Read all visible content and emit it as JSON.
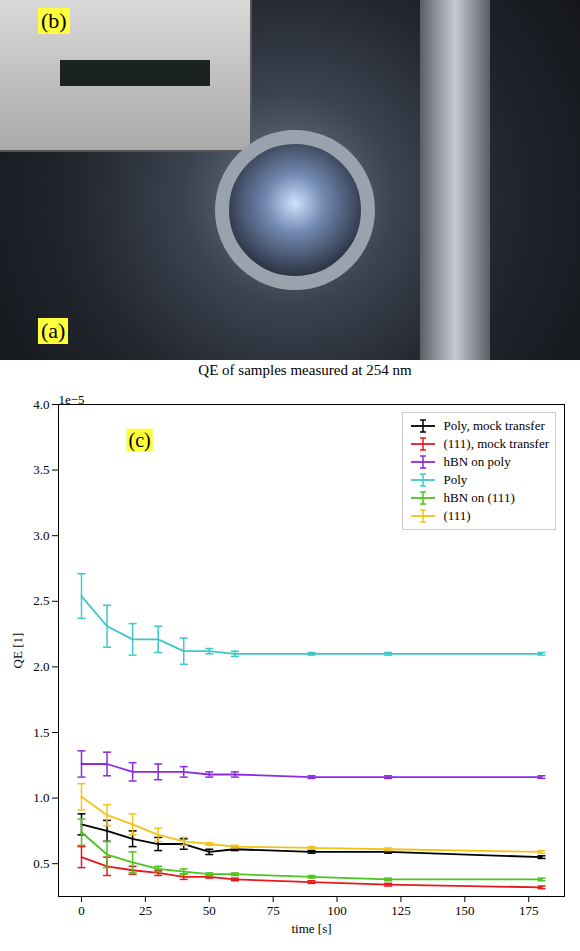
{
  "photo": {
    "labels": [
      "(a)",
      "(b)"
    ]
  },
  "chart_data": {
    "type": "line",
    "title": "QE of samples measured at 254 nm",
    "panel_label": "(c)",
    "x_label": "time [s]",
    "y_label": "QE [1]",
    "y_multiplier": "1e−5",
    "x": [
      0,
      10,
      20,
      30,
      40,
      50,
      60,
      90,
      120,
      180
    ],
    "xlim": [
      -9,
      189
    ],
    "xticks": [
      0,
      25,
      50,
      75,
      100,
      125,
      150,
      175
    ],
    "ylim": [
      0.25,
      4.0
    ],
    "yticks": [
      0.5,
      {
        "value": 1,
        "label": "1.0"
      },
      1.5,
      {
        "value": 2,
        "label": "2.0"
      },
      2.5,
      {
        "value": 3,
        "label": "3.0"
      },
      3.5,
      {
        "value": 4,
        "label": "4.0"
      }
    ],
    "legend": "upper right",
    "grid": false,
    "series": [
      {
        "name": "Poly, mock transfer",
        "color": "#000000",
        "values": [
          0.8,
          0.75,
          0.69,
          0.65,
          0.65,
          0.59,
          0.61,
          0.59,
          0.59,
          0.55
        ],
        "errors": [
          0.08,
          0.08,
          0.06,
          0.05,
          0.04,
          0.02,
          0.01,
          0.01,
          0.01,
          0.01
        ]
      },
      {
        "name": "(111), mock transfer",
        "color": "#e8191c",
        "values": [
          0.55,
          0.48,
          0.45,
          0.43,
          0.4,
          0.4,
          0.38,
          0.36,
          0.34,
          0.32
        ],
        "errors": [
          0.08,
          0.07,
          0.03,
          0.02,
          0.02,
          0.01,
          0.01,
          0.01,
          0.01,
          0.01
        ]
      },
      {
        "name": "hBN on poly",
        "color": "#8a2be2",
        "values": [
          1.26,
          1.26,
          1.2,
          1.2,
          1.2,
          1.18,
          1.18,
          1.16,
          1.16,
          1.16
        ],
        "errors": [
          0.1,
          0.09,
          0.07,
          0.06,
          0.04,
          0.02,
          0.02,
          0.01,
          0.01,
          0.01
        ]
      },
      {
        "name": "Poly",
        "color": "#3cc8c8",
        "values": [
          2.54,
          2.31,
          2.21,
          2.21,
          2.12,
          2.12,
          2.1,
          2.1,
          2.1,
          2.1
        ],
        "errors": [
          0.17,
          0.16,
          0.12,
          0.1,
          0.1,
          0.02,
          0.02,
          0.01,
          0.01,
          0.01
        ]
      },
      {
        "name": "hBN on (111)",
        "color": "#4cc51c",
        "values": [
          0.74,
          0.57,
          0.51,
          0.46,
          0.44,
          0.42,
          0.42,
          0.4,
          0.38,
          0.38
        ],
        "errors": [
          0.1,
          0.1,
          0.08,
          0.02,
          0.02,
          0.01,
          0.01,
          0.01,
          0.01,
          0.01
        ]
      },
      {
        "name": "(111)",
        "color": "#f0c419",
        "values": [
          1.01,
          0.87,
          0.8,
          0.72,
          0.67,
          0.65,
          0.63,
          0.62,
          0.61,
          0.59
        ],
        "errors": [
          0.1,
          0.08,
          0.08,
          0.05,
          0.03,
          0.01,
          0.01,
          0.01,
          0.01,
          0.01
        ]
      }
    ]
  }
}
